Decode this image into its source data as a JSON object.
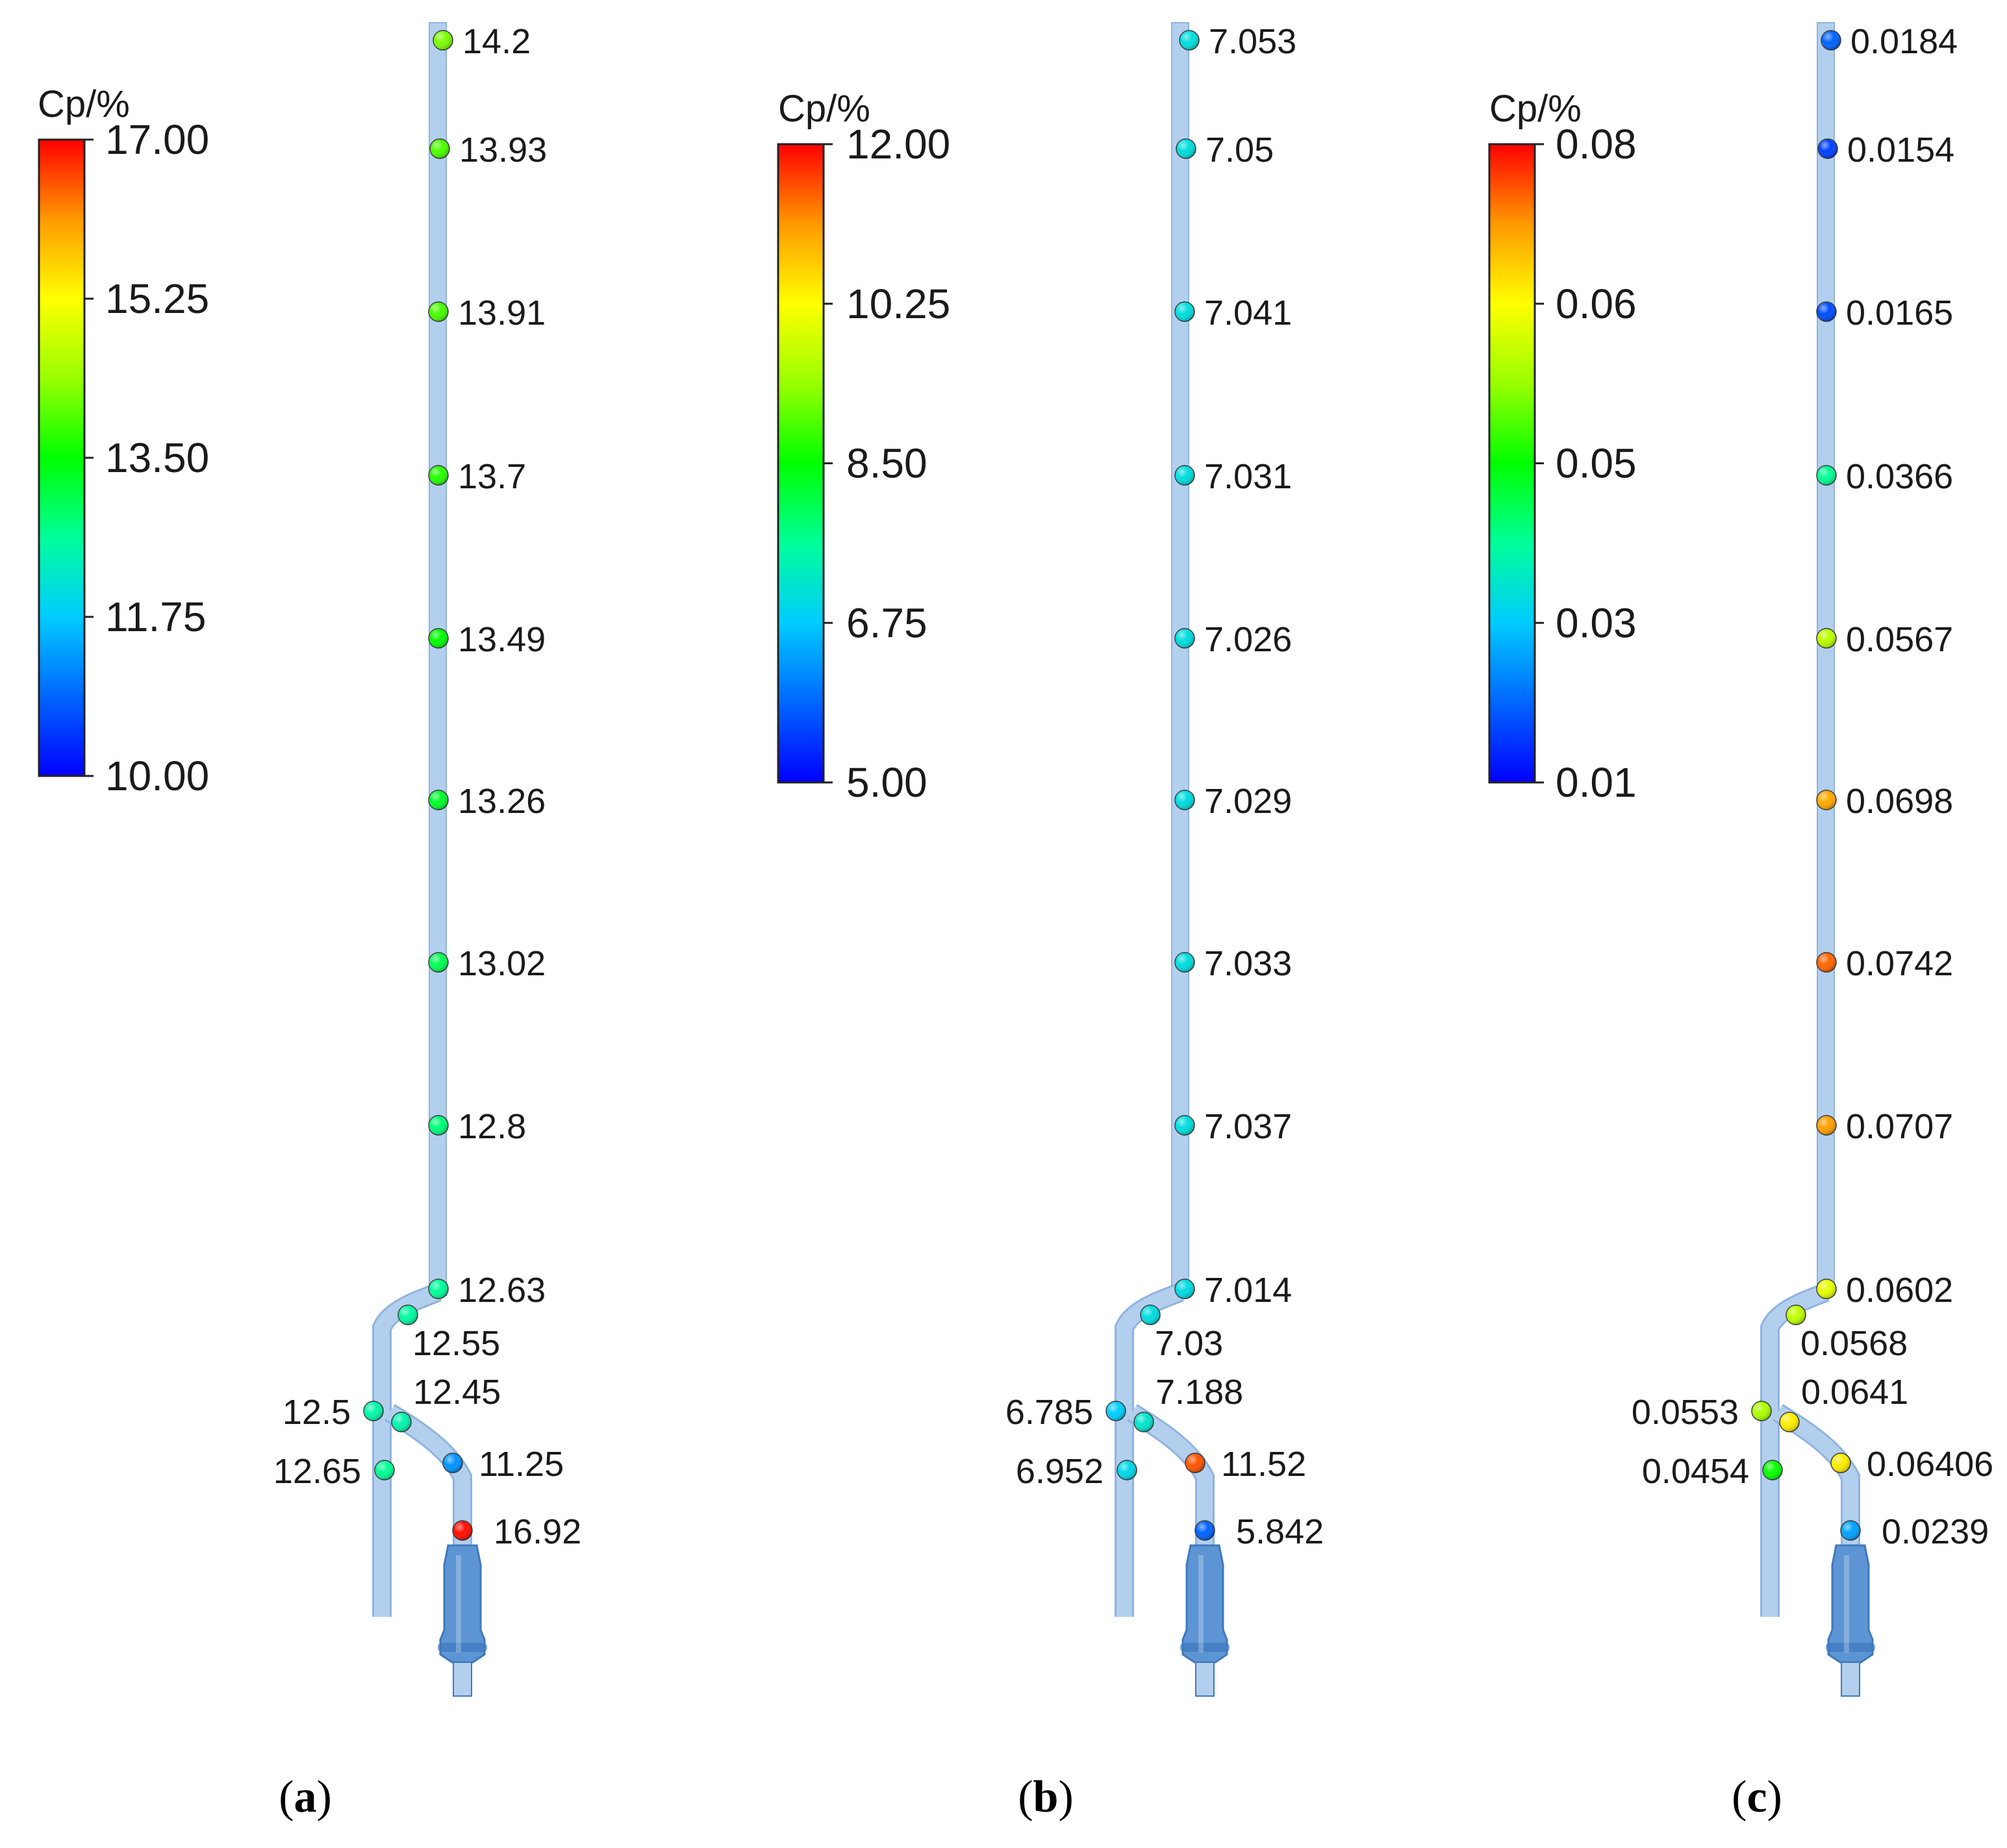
{
  "figure": {
    "panels": [
      {
        "id": "a",
        "caption_open": "(",
        "caption_letter": "a",
        "caption_close": ")",
        "colorbar": {
          "title": "Cp/%",
          "min": 10.0,
          "max": 17.0,
          "tick_labels": [
            "17.00",
            "15.25",
            "13.50",
            "11.75",
            "10.00"
          ]
        },
        "probes": [
          {
            "value": 14.2,
            "label": "14.2"
          },
          {
            "value": 13.93,
            "label": "13.93"
          },
          {
            "value": 13.91,
            "label": "13.91"
          },
          {
            "value": 13.7,
            "label": "13.7"
          },
          {
            "value": 13.49,
            "label": "13.49"
          },
          {
            "value": 13.26,
            "label": "13.26"
          },
          {
            "value": 13.02,
            "label": "13.02"
          },
          {
            "value": 12.8,
            "label": "12.8"
          },
          {
            "value": 12.63,
            "label": "12.63"
          },
          {
            "value": 12.55,
            "label": "12.55"
          },
          {
            "value": 12.5,
            "label": "12.5"
          },
          {
            "value": 12.45,
            "label": "12.45"
          },
          {
            "value": 12.65,
            "label": "12.65"
          },
          {
            "value": 11.25,
            "label": "11.25"
          },
          {
            "value": 16.92,
            "label": "16.92"
          }
        ]
      },
      {
        "id": "b",
        "caption_open": "(",
        "caption_letter": "b",
        "caption_close": ")",
        "colorbar": {
          "title": "Cp/%",
          "min": 5.0,
          "max": 12.0,
          "tick_labels": [
            "12.00",
            "10.25",
            "8.50",
            "6.75",
            "5.00"
          ]
        },
        "probes": [
          {
            "value": 7.053,
            "label": "7.053"
          },
          {
            "value": 7.05,
            "label": "7.05"
          },
          {
            "value": 7.041,
            "label": "7.041"
          },
          {
            "value": 7.031,
            "label": "7.031"
          },
          {
            "value": 7.026,
            "label": "7.026"
          },
          {
            "value": 7.029,
            "label": "7.029"
          },
          {
            "value": 7.033,
            "label": "7.033"
          },
          {
            "value": 7.037,
            "label": "7.037"
          },
          {
            "value": 7.014,
            "label": "7.014"
          },
          {
            "value": 7.03,
            "label": "7.03"
          },
          {
            "value": 6.785,
            "label": "6.785"
          },
          {
            "value": 7.188,
            "label": "7.188"
          },
          {
            "value": 6.952,
            "label": "6.952"
          },
          {
            "value": 11.52,
            "label": "11.52"
          },
          {
            "value": 5.842,
            "label": "5.842"
          }
        ]
      },
      {
        "id": "c",
        "caption_open": "(",
        "caption_letter": "c",
        "caption_close": ")",
        "colorbar": {
          "title": "Cp/%",
          "min": 0.01,
          "max": 0.08,
          "tick_labels": [
            "0.08",
            "0.06",
            "0.05",
            "0.03",
            "0.01"
          ]
        },
        "probes": [
          {
            "value": 0.0184,
            "label": "0.0184"
          },
          {
            "value": 0.0154,
            "label": "0.0154"
          },
          {
            "value": 0.0165,
            "label": "0.0165"
          },
          {
            "value": 0.0366,
            "label": "0.0366"
          },
          {
            "value": 0.0567,
            "label": "0.0567"
          },
          {
            "value": 0.0698,
            "label": "0.0698"
          },
          {
            "value": 0.0742,
            "label": "0.0742"
          },
          {
            "value": 0.0707,
            "label": "0.0707"
          },
          {
            "value": 0.0602,
            "label": "0.0602"
          },
          {
            "value": 0.0568,
            "label": "0.0568"
          },
          {
            "value": 0.0553,
            "label": "0.0553"
          },
          {
            "value": 0.0641,
            "label": "0.0641"
          },
          {
            "value": 0.0454,
            "label": "0.0454"
          },
          {
            "value": 0.06406,
            "label": "0.06406"
          },
          {
            "value": 0.0239,
            "label": "0.0239"
          }
        ]
      }
    ],
    "colors": {
      "pipe_fill": "#b3cfee",
      "pipe_edge": "#8fb3df",
      "nozzle_fill": "#5d94d3",
      "nozzle_edge": "#3f78bd"
    }
  }
}
